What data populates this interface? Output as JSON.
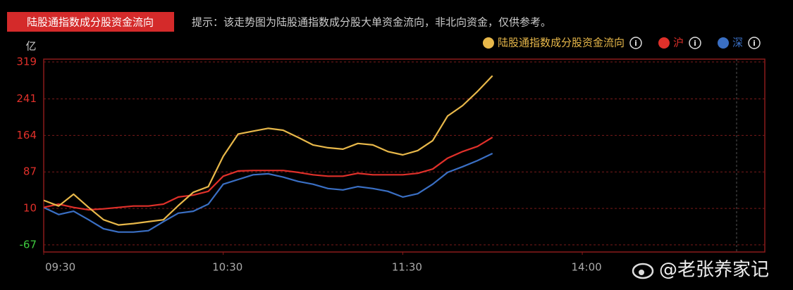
{
  "tab": "陆股通指数成分股资金流向",
  "hint": "提示：该走势图为陆股通指数成分股大单资金流向，非北向资金，仅供参考。",
  "watermark": "@老张养家记",
  "chart_data": {
    "type": "line",
    "y_unit": "亿",
    "x": [
      0,
      5,
      10,
      15,
      20,
      25,
      30,
      35,
      40,
      45,
      50,
      55,
      60,
      65,
      70,
      75,
      80,
      85,
      90,
      95,
      100,
      105,
      110,
      115,
      120,
      125,
      130,
      135,
      140,
      145,
      150
    ],
    "xlim": [
      0,
      241
    ],
    "xticks": [
      {
        "value": 0,
        "label": "09:30"
      },
      {
        "value": 60,
        "label": "10:30"
      },
      {
        "value": 120,
        "label": "11:30"
      },
      {
        "value": 180,
        "label": "14:00"
      }
    ],
    "ylim": [
      -82,
      325
    ],
    "yticks": [
      319,
      241,
      164,
      87,
      10,
      -67
    ],
    "grid": true,
    "legend": "top-right",
    "series": [
      {
        "name": "陆股通指数成分股资金流向",
        "color": "#e8b84a",
        "values": [
          27,
          15,
          40,
          12,
          -14,
          -25,
          -22,
          -18,
          -14,
          16,
          44,
          56,
          120,
          167,
          173,
          179,
          175,
          160,
          144,
          138,
          135,
          147,
          144,
          130,
          123,
          132,
          153,
          205,
          227,
          257,
          290
        ]
      },
      {
        "name": "沪",
        "color": "#e0302a",
        "values": [
          12,
          19,
          12,
          7,
          9,
          12,
          15,
          15,
          19,
          34,
          38,
          46,
          78,
          89,
          90,
          90,
          90,
          86,
          81,
          78,
          78,
          84,
          81,
          81,
          81,
          84,
          93,
          116,
          130,
          141,
          160
        ]
      },
      {
        "name": "深",
        "color": "#3a6fc4",
        "values": [
          12,
          -3,
          4,
          -14,
          -33,
          -40,
          -40,
          -37,
          -18,
          0,
          4,
          19,
          61,
          71,
          81,
          83,
          76,
          67,
          61,
          52,
          49,
          56,
          52,
          46,
          34,
          41,
          61,
          86,
          98,
          111,
          126
        ]
      }
    ]
  }
}
